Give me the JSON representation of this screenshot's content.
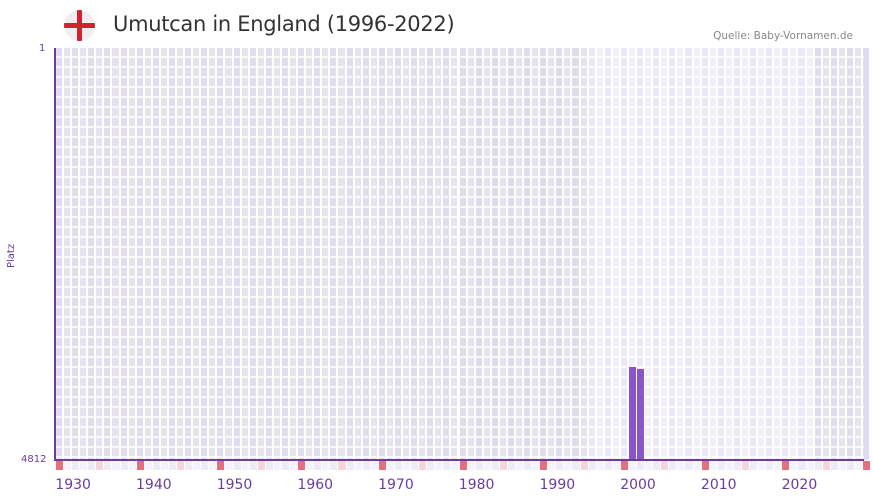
{
  "header": {
    "title": "Umutcan in England (1996-2022)",
    "source": "Quelle: Baby-Vornamen.de",
    "flag_icon": "england-flag-icon"
  },
  "colors": {
    "accent": "#6a3d9a",
    "bar": "#8b55c9",
    "decade_marker": "#e5707d",
    "half_decade_marker": "#f5d5dc",
    "bg_out_of_range": "#e4e0ef",
    "bg_in_range": "#efecf8"
  },
  "chart_data": {
    "type": "bar",
    "title": "Umutcan in England (1996-2022)",
    "xlabel": "",
    "ylabel": "Platz",
    "y_inverted": true,
    "ylim": [
      1,
      4812
    ],
    "yticks": [
      "1",
      "4812"
    ],
    "xlim": [
      1928,
      2028
    ],
    "xticks": [
      "1930",
      "1940",
      "1950",
      "1960",
      "1970",
      "1980",
      "1990",
      "2000",
      "2010",
      "2020"
    ],
    "data_range": [
      1996,
      2022
    ],
    "grid": true,
    "categories": [
      "1999",
      "2000"
    ],
    "values": [
      3726,
      3749
    ],
    "series": [
      {
        "name": "Platz",
        "points": [
          {
            "x": 1999,
            "rank": 3726
          },
          {
            "x": 2000,
            "rank": 3749
          }
        ]
      }
    ]
  }
}
